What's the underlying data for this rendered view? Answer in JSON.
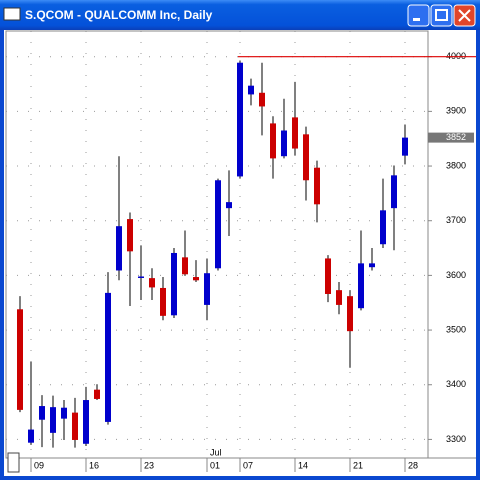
{
  "chart_data": {
    "type": "candlestick",
    "title": "S.QCOM - QUALCOMM Inc, Daily",
    "categories": [
      null,
      "09",
      null,
      null,
      null,
      null,
      "16",
      null,
      null,
      null,
      null,
      "23",
      null,
      null,
      null,
      null,
      null,
      "01",
      null,
      null,
      "07",
      null,
      null,
      null,
      null,
      "14",
      null,
      null,
      null,
      null,
      "21",
      null,
      null,
      null,
      null,
      "28"
    ],
    "month_marker": {
      "label": "Jul",
      "category": "01"
    },
    "open": [
      3538,
      3294,
      3336,
      3312,
      3338,
      3349,
      3292,
      3391,
      3332,
      3609,
      3703,
      3597,
      3595,
      3577,
      3527,
      3633,
      3597,
      3546,
      3613,
      3723,
      3781,
      3931,
      3934,
      3878,
      3818,
      3889,
      3858,
      3797,
      3631,
      3573,
      3562,
      3540,
      3615,
      3657,
      3723,
      3819
    ],
    "high": [
      3562,
      3442,
      3381,
      3380,
      3372,
      3376,
      3396,
      3401,
      3606,
      3818,
      3715,
      3655,
      3613,
      3597,
      3650,
      3682,
      3628,
      3631,
      3777,
      3792,
      3993,
      3960,
      3989,
      3891,
      3923,
      3954,
      3872,
      3810,
      3637,
      3588,
      3573,
      3682,
      3650,
      3777,
      3801,
      3876
    ],
    "low": [
      3350,
      3290,
      3286,
      3285,
      3299,
      3285,
      3288,
      3372,
      3327,
      3591,
      3544,
      3555,
      3555,
      3518,
      3522,
      3599,
      3588,
      3518,
      3609,
      3672,
      3777,
      3911,
      3856,
      3777,
      3814,
      3819,
      3737,
      3697,
      3551,
      3529,
      3431,
      3536,
      3609,
      3650,
      3646,
      3803
    ],
    "close": [
      3354,
      3318,
      3361,
      3359,
      3358,
      3299,
      3372,
      3374,
      3568,
      3690,
      3644,
      3598,
      3578,
      3526,
      3641,
      3602,
      3591,
      3604,
      3774,
      3734,
      3989,
      3947,
      3909,
      3814,
      3865,
      3832,
      3774,
      3730,
      3566,
      3546,
      3498,
      3622,
      3622,
      3719,
      3783,
      3852
    ],
    "up_color": "#0000cc",
    "down_color": "#cc0000",
    "ylim": [
      3266,
      4047
    ],
    "yticks": [
      3300,
      3400,
      3500,
      3600,
      3700,
      3800,
      3900,
      4000
    ],
    "reference_line": {
      "value": 4000,
      "color": "#dd0000"
    },
    "last_price": 3852,
    "grid": true
  }
}
